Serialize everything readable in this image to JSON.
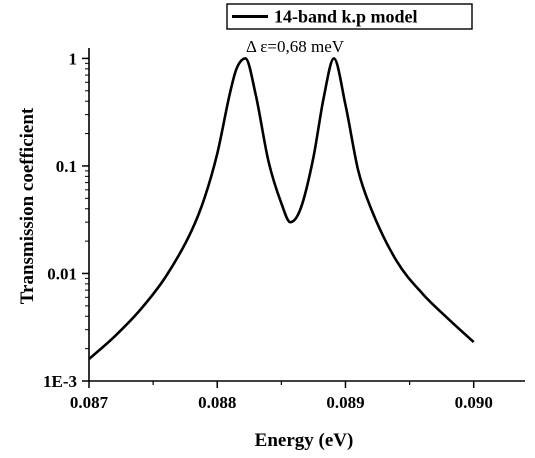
{
  "chart_data": {
    "type": "line",
    "xlabel": "Energy (eV)",
    "ylabel": "Transmission coefficient",
    "x_scale": "linear",
    "y_scale": "log",
    "xlim": [
      0.087,
      0.0904
    ],
    "ylim": [
      0.001,
      1.25
    ],
    "x_ticks": [
      0.087,
      0.088,
      0.089,
      0.09
    ],
    "x_tick_labels": [
      "0.087",
      "0.088",
      "0.089",
      "0.090"
    ],
    "y_ticks": [
      0.001,
      0.01,
      0.1,
      1
    ],
    "y_tick_labels": [
      "1E-3",
      "0.01",
      "0.1",
      "1"
    ],
    "legend": {
      "placement": "top",
      "entries": [
        "14-band k.p model"
      ]
    },
    "annotation": "Δ ε=0,68 meV",
    "grid": false,
    "line_color": "#000000",
    "series": [
      {
        "name": "14-band k.p model",
        "x": [
          0.087,
          0.0872,
          0.0874,
          0.0876,
          0.0878,
          0.0879,
          0.088,
          0.0881,
          0.08815,
          0.08822,
          0.0883,
          0.0884,
          0.0885,
          0.08857,
          0.08865,
          0.08875,
          0.08883,
          0.08891,
          0.089,
          0.0891,
          0.0892,
          0.0894,
          0.0896,
          0.0898,
          0.09
        ],
        "y": [
          0.0016,
          0.0026,
          0.0046,
          0.0094,
          0.025,
          0.05,
          0.13,
          0.48,
          0.8,
          1.0,
          0.46,
          0.11,
          0.045,
          0.03,
          0.04,
          0.12,
          0.43,
          1.0,
          0.37,
          0.09,
          0.04,
          0.013,
          0.0065,
          0.0038,
          0.0023
        ]
      }
    ]
  }
}
